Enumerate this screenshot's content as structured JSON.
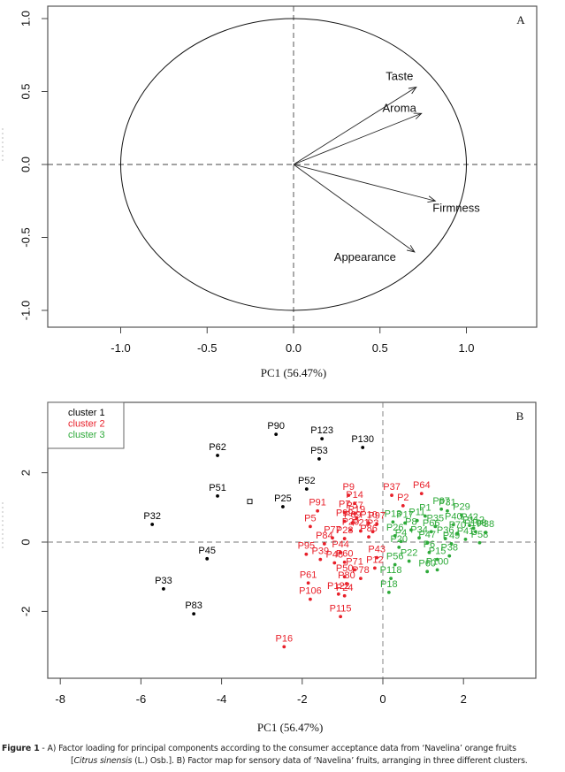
{
  "chart_data": [
    {
      "type": "scatter",
      "subtype": "correlation-circle",
      "panel_label": "A",
      "title": "",
      "xlabel": "PC1 (56.47%)",
      "ylabel": "",
      "xlim": [
        -1.4,
        1.4
      ],
      "ylim": [
        -1.07,
        1.07
      ],
      "x_ticks": [
        -1.0,
        -0.5,
        0.0,
        0.5,
        1.0
      ],
      "x_tick_labels": [
        "-1.0",
        "-0.5",
        "0.0",
        "0.5",
        "1.0"
      ],
      "y_ticks": [
        -1.0,
        -0.5,
        0.0,
        0.5,
        1.0
      ],
      "y_tick_labels": [
        "-1.0",
        "-0.5",
        "0.0",
        "0.5",
        "1.0"
      ],
      "unit_circle_radius": 1.0,
      "reference_lines": {
        "x": 0,
        "y": 0,
        "style": "dashed"
      },
      "vectors": [
        {
          "name": "Taste",
          "x": 0.71,
          "y": 0.53
        },
        {
          "name": "Aroma",
          "x": 0.74,
          "y": 0.35
        },
        {
          "name": "Firmness",
          "x": 0.82,
          "y": -0.25
        },
        {
          "name": "Appearance",
          "x": 0.7,
          "y": -0.6
        }
      ]
    },
    {
      "type": "scatter",
      "panel_label": "B",
      "title": "",
      "xlabel": "PC1 (56.47%)",
      "ylabel": "",
      "xlim": [
        -8.5,
        3.8
      ],
      "ylim": [
        -4.0,
        4.05
      ],
      "x_ticks": [
        -8,
        -6,
        -4,
        -2,
        0,
        2
      ],
      "x_tick_labels": [
        "-8",
        "-6",
        "-4",
        "-2",
        "0",
        "2"
      ],
      "y_ticks": [
        -2,
        0,
        2
      ],
      "y_tick_labels": [
        "-2",
        "0",
        "2"
      ],
      "reference_lines": {
        "x": 0,
        "y": 0,
        "style": "dashed"
      },
      "legend": {
        "position": "top-left",
        "entries": [
          {
            "label": "cluster 1",
            "color": "#000000"
          },
          {
            "label": "cluster 2",
            "color": "#e8202a"
          },
          {
            "label": "cluster 3",
            "color": "#2eaa3a"
          }
        ]
      },
      "open_square_marker": {
        "x": -3.3,
        "y": 1.17
      },
      "series": [
        {
          "name": "cluster 1",
          "color": "#000000",
          "points": [
            {
              "label": "P90",
              "x": -2.65,
              "y": 3.11
            },
            {
              "label": "P123",
              "x": -1.51,
              "y": 2.98
            },
            {
              "label": "P130",
              "x": -0.5,
              "y": 2.73
            },
            {
              "label": "P62",
              "x": -4.1,
              "y": 2.5
            },
            {
              "label": "P53",
              "x": -1.58,
              "y": 2.4
            },
            {
              "label": "P52",
              "x": -1.89,
              "y": 1.53
            },
            {
              "label": "P51",
              "x": -4.1,
              "y": 1.33
            },
            {
              "label": "P25",
              "x": -2.48,
              "y": 1.02
            },
            {
              "label": "P32",
              "x": -5.72,
              "y": 0.51
            },
            {
              "label": "P45",
              "x": -4.36,
              "y": -0.48
            },
            {
              "label": "P33",
              "x": -5.44,
              "y": -1.35
            },
            {
              "label": "P83",
              "x": -4.69,
              "y": -2.07
            }
          ]
        },
        {
          "name": "cluster 2",
          "color": "#e8202a",
          "points": [
            {
              "label": "P37",
              "x": 0.22,
              "y": 1.35
            },
            {
              "label": "P64",
              "x": 0.96,
              "y": 1.4
            },
            {
              "label": "P2",
              "x": 0.5,
              "y": 1.05
            },
            {
              "label": "P9",
              "x": -0.85,
              "y": 1.35
            },
            {
              "label": "P14",
              "x": -0.7,
              "y": 1.12
            },
            {
              "label": "P91",
              "x": -1.62,
              "y": 0.9
            },
            {
              "label": "P7",
              "x": -0.95,
              "y": 0.85
            },
            {
              "label": "P57",
              "x": -0.7,
              "y": 0.82
            },
            {
              "label": "P19",
              "x": -0.65,
              "y": 0.7
            },
            {
              "label": "P5",
              "x": -1.8,
              "y": 0.45
            },
            {
              "label": "P99",
              "x": -0.95,
              "y": 0.6
            },
            {
              "label": "P69",
              "x": -0.75,
              "y": 0.55
            },
            {
              "label": "P10",
              "x": -0.35,
              "y": 0.55
            },
            {
              "label": "P97",
              "x": -0.15,
              "y": 0.52
            },
            {
              "label": "P20",
              "x": -0.8,
              "y": 0.35
            },
            {
              "label": "P21",
              "x": -0.55,
              "y": 0.32
            },
            {
              "label": "P3",
              "x": -0.25,
              "y": 0.3
            },
            {
              "label": "P77",
              "x": -1.25,
              "y": 0.12
            },
            {
              "label": "P28",
              "x": -0.95,
              "y": 0.1
            },
            {
              "label": "P86",
              "x": -0.35,
              "y": 0.15
            },
            {
              "label": "P84",
              "x": -1.45,
              "y": -0.05
            },
            {
              "label": "P95",
              "x": -1.9,
              "y": -0.35
            },
            {
              "label": "P44",
              "x": -1.05,
              "y": -0.3
            },
            {
              "label": "P39",
              "x": -1.55,
              "y": -0.5
            },
            {
              "label": "P48",
              "x": -1.2,
              "y": -0.6
            },
            {
              "label": "P60",
              "x": -0.95,
              "y": -0.58
            },
            {
              "label": "P43",
              "x": -0.15,
              "y": -0.45
            },
            {
              "label": "P12",
              "x": -0.2,
              "y": -0.75
            },
            {
              "label": "P71",
              "x": -0.7,
              "y": -0.8
            },
            {
              "label": "P50",
              "x": -0.95,
              "y": -1.0
            },
            {
              "label": "P78",
              "x": -0.55,
              "y": -1.05
            },
            {
              "label": "P80",
              "x": -0.9,
              "y": -1.2
            },
            {
              "label": "P61",
              "x": -1.85,
              "y": -1.18
            },
            {
              "label": "P106",
              "x": -1.8,
              "y": -1.65
            },
            {
              "label": "P122",
              "x": -1.1,
              "y": -1.5
            },
            {
              "label": "P24",
              "x": -0.95,
              "y": -1.55
            },
            {
              "label": "P115",
              "x": -1.05,
              "y": -2.15
            },
            {
              "label": "P16",
              "x": -2.45,
              "y": -3.02
            }
          ]
        },
        {
          "name": "cluster 3",
          "color": "#2eaa3a",
          "points": [
            {
              "label": "P87",
              "x": 1.45,
              "y": 0.95
            },
            {
              "label": "P31",
              "x": 1.6,
              "y": 0.9
            },
            {
              "label": "P29",
              "x": 1.95,
              "y": 0.78
            },
            {
              "label": "P1",
              "x": 1.05,
              "y": 0.75
            },
            {
              "label": "P13",
              "x": 0.25,
              "y": 0.58
            },
            {
              "label": "P17",
              "x": 0.55,
              "y": 0.55
            },
            {
              "label": "P11",
              "x": 0.85,
              "y": 0.62
            },
            {
              "label": "P42",
              "x": 2.15,
              "y": 0.48
            },
            {
              "label": "P112",
              "x": 2.25,
              "y": 0.4
            },
            {
              "label": "P35",
              "x": 1.3,
              "y": 0.45
            },
            {
              "label": "P40",
              "x": 1.75,
              "y": 0.5
            },
            {
              "label": "P8",
              "x": 0.7,
              "y": 0.35
            },
            {
              "label": "P66",
              "x": 1.2,
              "y": 0.3
            },
            {
              "label": "P108",
              "x": 2.3,
              "y": 0.3
            },
            {
              "label": "P88",
              "x": 2.55,
              "y": 0.28
            },
            {
              "label": "P70",
              "x": 1.85,
              "y": 0.25
            },
            {
              "label": "P26",
              "x": 0.3,
              "y": 0.18
            },
            {
              "label": "P34",
              "x": 0.9,
              "y": 0.12
            },
            {
              "label": "P36",
              "x": 1.55,
              "y": 0.1
            },
            {
              "label": "P41",
              "x": 2.05,
              "y": 0.08
            },
            {
              "label": "P4",
              "x": 0.45,
              "y": 0.02
            },
            {
              "label": "P47",
              "x": 1.1,
              "y": -0.02
            },
            {
              "label": "P49",
              "x": 1.7,
              "y": -0.05
            },
            {
              "label": "P58",
              "x": 2.4,
              "y": -0.02
            },
            {
              "label": "P20b",
              "x": 0.4,
              "y": -0.15
            },
            {
              "label": "P6",
              "x": 1.15,
              "y": -0.3
            },
            {
              "label": "P15",
              "x": 1.35,
              "y": -0.5
            },
            {
              "label": "P38",
              "x": 1.65,
              "y": -0.4
            },
            {
              "label": "P22",
              "x": 0.65,
              "y": -0.55
            },
            {
              "label": "P56",
              "x": 0.3,
              "y": -0.65
            },
            {
              "label": "P100",
              "x": 1.35,
              "y": -0.8
            },
            {
              "label": "P60b",
              "x": 1.1,
              "y": -0.85
            },
            {
              "label": "P118",
              "x": 0.2,
              "y": -1.05
            },
            {
              "label": "P18",
              "x": 0.15,
              "y": -1.45
            }
          ]
        }
      ]
    }
  ],
  "caption": {
    "figure_label": "Figure 1",
    "line1": " - A) Factor loading for principal components according to the consumer acceptance data from ‘Navelina’ orange fruits",
    "line2_pre": "[",
    "line2_italic": "Citrus sinensis",
    "line2_post": " (L.) Osb.]. B) Factor map for sensory data of ‘Navelina’ fruits, arranging in three different clusters."
  }
}
